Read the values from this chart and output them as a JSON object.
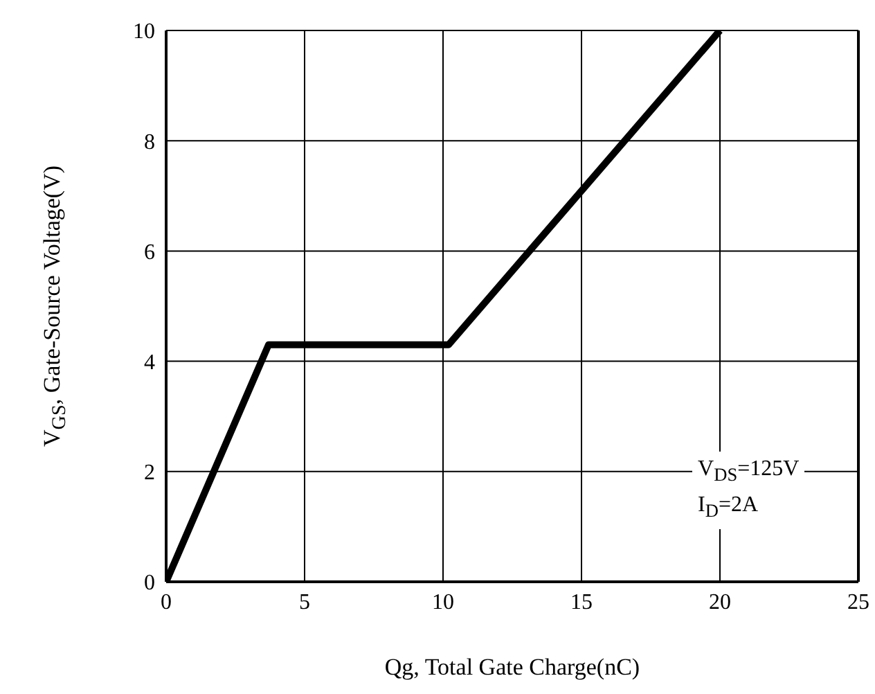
{
  "chart_data": {
    "type": "line",
    "xlabel": "Qg, Total Gate Charge(nC)",
    "ylabel": "V$_{GS}$, Gate-Source Voltage(V)",
    "annotations": [
      "V$_{DS}$=125V",
      "I$_{D}$=2A"
    ],
    "x": [
      0,
      3.7,
      10.2,
      20
    ],
    "series": [
      {
        "color": "#000000",
        "values": [
          0,
          4.3,
          4.3,
          10
        ]
      }
    ],
    "xlim": [
      0,
      25
    ],
    "xticks": [
      0,
      5,
      10,
      15,
      20,
      25
    ],
    "ylim": [
      0,
      10
    ],
    "yticks": [
      0,
      2,
      4,
      6,
      8,
      10
    ],
    "grid": true,
    "legend": false,
    "marker": "none",
    "line_style": "solid"
  }
}
